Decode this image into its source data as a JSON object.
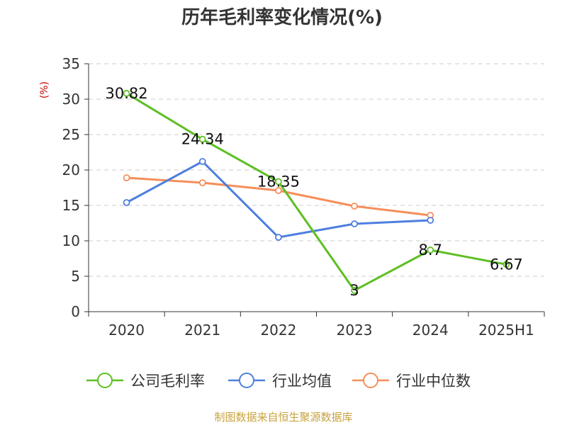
{
  "title": "历年毛利率变化情况(%)",
  "source": "制图数据来自恒生聚源数据库",
  "chart_data": {
    "type": "line",
    "title": "历年毛利率变化情况(%)",
    "ylabel": "(%)",
    "xlabel": "",
    "categories": [
      "2020",
      "2021",
      "2022",
      "2023",
      "2024",
      "2025H1"
    ],
    "ylim": [
      0,
      35
    ],
    "yticks": [
      0,
      5,
      10,
      15,
      20,
      25,
      30,
      35
    ],
    "grid": true,
    "legend_position": "bottom",
    "series": [
      {
        "name": "公司毛利率",
        "color": "#5dbf23",
        "values": [
          30.82,
          24.34,
          18.35,
          3,
          8.7,
          6.67
        ],
        "labels": [
          "30.82",
          "24.34",
          "18.35",
          "3",
          "8.7",
          "6.67"
        ]
      },
      {
        "name": "行业均值",
        "color": "#4e7fde",
        "values": [
          15.4,
          21.2,
          10.5,
          12.4,
          12.9,
          null
        ]
      },
      {
        "name": "行业中位数",
        "color": "#f58e5a",
        "values": [
          18.9,
          18.2,
          17.1,
          14.9,
          13.6,
          null
        ]
      }
    ]
  },
  "colors": {
    "axis": "#333333",
    "grid": "#cccccc",
    "unit": "#cc0000",
    "source": "#c8a23c"
  }
}
